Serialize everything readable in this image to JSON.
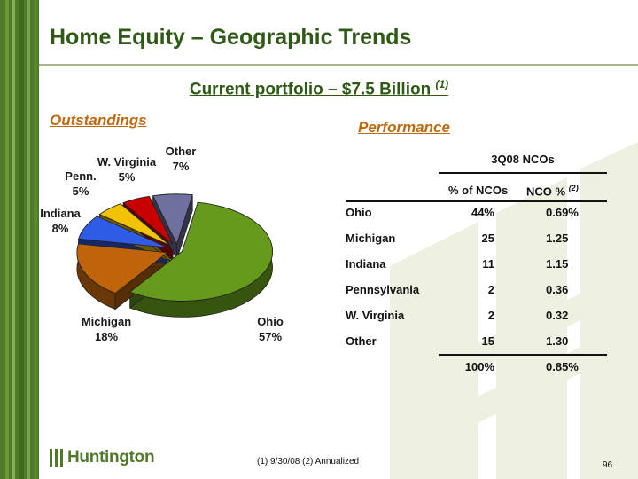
{
  "slide": {
    "title": "Home Equity – Geographic Trends",
    "subtitle": "Current portfolio – $7.5 Billion",
    "subtitle_note": "(1)",
    "left_heading": "Outstandings",
    "right_heading": "Performance",
    "footnote": "(1)  9/30/08     (2)  Annualized",
    "page_number": "96",
    "logo_text": "Huntington"
  },
  "chart_data": [
    {
      "type": "pie",
      "title": "Outstandings",
      "slices": [
        {
          "label_lines": [
            "Ohio",
            "57%"
          ],
          "value": 57,
          "color": "#669a1d"
        },
        {
          "label_lines": [
            "Michigan",
            "18%"
          ],
          "value": 18,
          "color": "#c0640a"
        },
        {
          "label_lines": [
            "Indiana",
            "8%"
          ],
          "value": 8,
          "color": "#2f5ce6"
        },
        {
          "label_lines": [
            "Penn.",
            "5%"
          ],
          "value": 5,
          "color": "#f2c300"
        },
        {
          "label_lines": [
            "W. Virginia",
            "5%"
          ],
          "value": 5,
          "color": "#c80000"
        },
        {
          "label_lines": [
            "Other",
            "7%"
          ],
          "value": 7,
          "color": "#7070a0"
        }
      ]
    },
    {
      "type": "table",
      "title": "3Q08 NCOs",
      "columns": [
        "% of NCOs",
        "NCO %",
        "(2)"
      ],
      "rows": [
        {
          "label": "Ohio",
          "pct_ncos": "44%",
          "nco_pct": "0.69%"
        },
        {
          "label": "Michigan",
          "pct_ncos": "25",
          "nco_pct": "1.25"
        },
        {
          "label": "Indiana",
          "pct_ncos": "11",
          "nco_pct": "1.15"
        },
        {
          "label": "Pennsylvania",
          "pct_ncos": "2",
          "nco_pct": "0.36"
        },
        {
          "label": "W. Virginia",
          "pct_ncos": "2",
          "nco_pct": "0.32"
        },
        {
          "label": "Other",
          "pct_ncos": "15",
          "nco_pct": "1.30"
        }
      ],
      "total": {
        "pct_ncos": "100%",
        "nco_pct": "0.85%"
      }
    }
  ]
}
